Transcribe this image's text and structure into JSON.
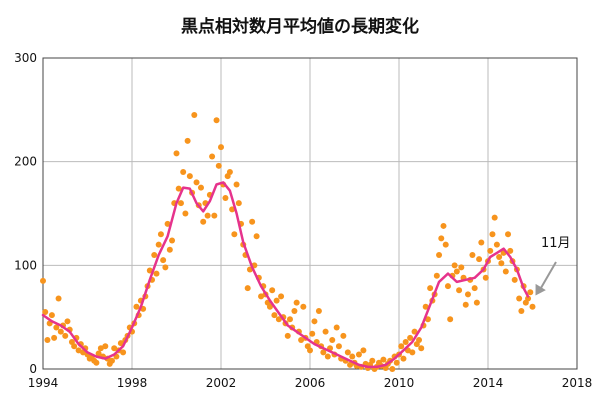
{
  "chart_data": {
    "type": "scatter",
    "title": "黒点相対数月平均値の長期変化",
    "xlabel": "",
    "ylabel": "",
    "xlim": [
      1994,
      2018
    ],
    "ylim": [
      0,
      300
    ],
    "x_ticks": [
      1994,
      1998,
      2002,
      2006,
      2010,
      2014,
      2018
    ],
    "y_ticks": [
      0,
      100,
      200,
      300
    ],
    "grid": true,
    "colors": {
      "monthly": "#f7941d",
      "smoothed": "#e6338c",
      "arrow": "#999999"
    },
    "annotation": {
      "text": "11月",
      "points_to": [
        2016.0,
        67
      ]
    },
    "series": [
      {
        "kind": "scatter",
        "points": [
          [
            1994.0,
            85
          ],
          [
            1994.1,
            55
          ],
          [
            1994.2,
            28
          ],
          [
            1994.3,
            44
          ],
          [
            1994.4,
            52
          ],
          [
            1994.5,
            30
          ],
          [
            1994.6,
            40
          ],
          [
            1994.7,
            68
          ],
          [
            1994.8,
            36
          ],
          [
            1994.9,
            42
          ],
          [
            1995.0,
            32
          ],
          [
            1995.1,
            46
          ],
          [
            1995.2,
            38
          ],
          [
            1995.3,
            26
          ],
          [
            1995.4,
            22
          ],
          [
            1995.5,
            30
          ],
          [
            1995.6,
            18
          ],
          [
            1995.7,
            24
          ],
          [
            1995.8,
            16
          ],
          [
            1995.9,
            20
          ],
          [
            1996.0,
            14
          ],
          [
            1996.1,
            10
          ],
          [
            1996.2,
            12
          ],
          [
            1996.3,
            8
          ],
          [
            1996.4,
            6
          ],
          [
            1996.5,
            15
          ],
          [
            1996.6,
            20
          ],
          [
            1996.7,
            12
          ],
          [
            1996.8,
            22
          ],
          [
            1996.9,
            10
          ],
          [
            1997.0,
            5
          ],
          [
            1997.1,
            8
          ],
          [
            1997.2,
            20
          ],
          [
            1997.3,
            12
          ],
          [
            1997.4,
            18
          ],
          [
            1997.5,
            25
          ],
          [
            1997.6,
            16
          ],
          [
            1997.7,
            28
          ],
          [
            1997.8,
            32
          ],
          [
            1997.9,
            40
          ],
          [
            1998.0,
            36
          ],
          [
            1998.1,
            44
          ],
          [
            1998.2,
            60
          ],
          [
            1998.3,
            52
          ],
          [
            1998.4,
            66
          ],
          [
            1998.5,
            58
          ],
          [
            1998.6,
            70
          ],
          [
            1998.7,
            80
          ],
          [
            1998.8,
            95
          ],
          [
            1998.9,
            86
          ],
          [
            1999.0,
            110
          ],
          [
            1999.1,
            92
          ],
          [
            1999.2,
            120
          ],
          [
            1999.3,
            130
          ],
          [
            1999.4,
            105
          ],
          [
            1999.5,
            98
          ],
          [
            1999.6,
            140
          ],
          [
            1999.7,
            115
          ],
          [
            1999.8,
            124
          ],
          [
            1999.9,
            160
          ],
          [
            2000.0,
            208
          ],
          [
            2000.1,
            174
          ],
          [
            2000.2,
            160
          ],
          [
            2000.3,
            190
          ],
          [
            2000.4,
            150
          ],
          [
            2000.5,
            220
          ],
          [
            2000.6,
            186
          ],
          [
            2000.7,
            170
          ],
          [
            2000.8,
            245
          ],
          [
            2000.9,
            180
          ],
          [
            2001.0,
            158
          ],
          [
            2001.1,
            175
          ],
          [
            2001.2,
            142
          ],
          [
            2001.3,
            160
          ],
          [
            2001.4,
            148
          ],
          [
            2001.5,
            168
          ],
          [
            2001.6,
            205
          ],
          [
            2001.7,
            148
          ],
          [
            2001.8,
            240
          ],
          [
            2001.9,
            196
          ],
          [
            2002.0,
            214
          ],
          [
            2002.1,
            178
          ],
          [
            2002.2,
            165
          ],
          [
            2002.3,
            186
          ],
          [
            2002.4,
            190
          ],
          [
            2002.5,
            154
          ],
          [
            2002.6,
            130
          ],
          [
            2002.7,
            178
          ],
          [
            2002.8,
            160
          ],
          [
            2002.9,
            140
          ],
          [
            2003.0,
            120
          ],
          [
            2003.1,
            110
          ],
          [
            2003.2,
            78
          ],
          [
            2003.3,
            96
          ],
          [
            2003.4,
            142
          ],
          [
            2003.5,
            100
          ],
          [
            2003.6,
            128
          ],
          [
            2003.7,
            88
          ],
          [
            2003.8,
            70
          ],
          [
            2003.9,
            80
          ],
          [
            2004.0,
            72
          ],
          [
            2004.1,
            64
          ],
          [
            2004.2,
            60
          ],
          [
            2004.3,
            76
          ],
          [
            2004.4,
            52
          ],
          [
            2004.5,
            66
          ],
          [
            2004.6,
            48
          ],
          [
            2004.7,
            70
          ],
          [
            2004.8,
            50
          ],
          [
            2004.9,
            44
          ],
          [
            2005.0,
            32
          ],
          [
            2005.1,
            48
          ],
          [
            2005.2,
            40
          ],
          [
            2005.3,
            56
          ],
          [
            2005.4,
            64
          ],
          [
            2005.5,
            36
          ],
          [
            2005.6,
            28
          ],
          [
            2005.7,
            60
          ],
          [
            2005.8,
            30
          ],
          [
            2005.9,
            22
          ],
          [
            2006.0,
            18
          ],
          [
            2006.1,
            34
          ],
          [
            2006.2,
            46
          ],
          [
            2006.3,
            26
          ],
          [
            2006.4,
            56
          ],
          [
            2006.5,
            22
          ],
          [
            2006.6,
            16
          ],
          [
            2006.7,
            36
          ],
          [
            2006.8,
            12
          ],
          [
            2006.9,
            20
          ],
          [
            2007.0,
            28
          ],
          [
            2007.1,
            14
          ],
          [
            2007.2,
            40
          ],
          [
            2007.3,
            22
          ],
          [
            2007.4,
            10
          ],
          [
            2007.5,
            32
          ],
          [
            2007.6,
            8
          ],
          [
            2007.7,
            16
          ],
          [
            2007.8,
            4
          ],
          [
            2007.9,
            12
          ],
          [
            2008.0,
            6
          ],
          [
            2008.1,
            3
          ],
          [
            2008.2,
            14
          ],
          [
            2008.3,
            2
          ],
          [
            2008.4,
            18
          ],
          [
            2008.5,
            5
          ],
          [
            2008.6,
            1
          ],
          [
            2008.7,
            4
          ],
          [
            2008.8,
            8
          ],
          [
            2008.9,
            0
          ],
          [
            2009.0,
            2
          ],
          [
            2009.1,
            6
          ],
          [
            2009.2,
            3
          ],
          [
            2009.3,
            9
          ],
          [
            2009.4,
            1
          ],
          [
            2009.5,
            5
          ],
          [
            2009.6,
            8
          ],
          [
            2009.7,
            0
          ],
          [
            2009.8,
            12
          ],
          [
            2009.9,
            6
          ],
          [
            2010.0,
            14
          ],
          [
            2010.1,
            22
          ],
          [
            2010.2,
            10
          ],
          [
            2010.3,
            26
          ],
          [
            2010.4,
            18
          ],
          [
            2010.5,
            30
          ],
          [
            2010.6,
            16
          ],
          [
            2010.7,
            36
          ],
          [
            2010.8,
            24
          ],
          [
            2010.9,
            28
          ],
          [
            2011.0,
            20
          ],
          [
            2011.1,
            42
          ],
          [
            2011.2,
            60
          ],
          [
            2011.3,
            48
          ],
          [
            2011.4,
            78
          ],
          [
            2011.5,
            66
          ],
          [
            2011.6,
            72
          ],
          [
            2011.7,
            90
          ],
          [
            2011.8,
            110
          ],
          [
            2011.9,
            126
          ],
          [
            2012.0,
            138
          ],
          [
            2012.1,
            120
          ],
          [
            2012.2,
            80
          ],
          [
            2012.3,
            48
          ],
          [
            2012.4,
            90
          ],
          [
            2012.5,
            100
          ],
          [
            2012.6,
            94
          ],
          [
            2012.7,
            76
          ],
          [
            2012.8,
            98
          ],
          [
            2012.9,
            88
          ],
          [
            2013.0,
            62
          ],
          [
            2013.1,
            72
          ],
          [
            2013.2,
            86
          ],
          [
            2013.3,
            110
          ],
          [
            2013.4,
            78
          ],
          [
            2013.5,
            64
          ],
          [
            2013.6,
            106
          ],
          [
            2013.7,
            122
          ],
          [
            2013.8,
            96
          ],
          [
            2013.9,
            88
          ],
          [
            2014.0,
            104
          ],
          [
            2014.1,
            114
          ],
          [
            2014.2,
            130
          ],
          [
            2014.3,
            146
          ],
          [
            2014.4,
            120
          ],
          [
            2014.5,
            108
          ],
          [
            2014.6,
            102
          ],
          [
            2014.7,
            112
          ],
          [
            2014.8,
            94
          ],
          [
            2014.9,
            130
          ],
          [
            2015.0,
            114
          ],
          [
            2015.1,
            104
          ],
          [
            2015.2,
            86
          ],
          [
            2015.3,
            96
          ],
          [
            2015.4,
            68
          ],
          [
            2015.5,
            56
          ],
          [
            2015.6,
            80
          ],
          [
            2015.7,
            64
          ],
          [
            2015.8,
            68
          ],
          [
            2015.9,
            74
          ],
          [
            2016.0,
            60
          ]
        ]
      },
      {
        "kind": "line",
        "points": [
          [
            1994.0,
            52
          ],
          [
            1994.4,
            46
          ],
          [
            1994.8,
            42
          ],
          [
            1995.2,
            36
          ],
          [
            1995.6,
            24
          ],
          [
            1996.0,
            16
          ],
          [
            1996.4,
            12
          ],
          [
            1996.8,
            10
          ],
          [
            1997.2,
            14
          ],
          [
            1997.6,
            22
          ],
          [
            1998.0,
            40
          ],
          [
            1998.4,
            60
          ],
          [
            1998.8,
            86
          ],
          [
            1999.2,
            110
          ],
          [
            1999.6,
            128
          ],
          [
            2000.0,
            160
          ],
          [
            2000.3,
            175
          ],
          [
            2000.6,
            174
          ],
          [
            2000.9,
            160
          ],
          [
            2001.2,
            152
          ],
          [
            2001.5,
            162
          ],
          [
            2001.8,
            178
          ],
          [
            2002.1,
            180
          ],
          [
            2002.4,
            172
          ],
          [
            2002.7,
            150
          ],
          [
            2003.0,
            122
          ],
          [
            2003.4,
            98
          ],
          [
            2003.8,
            80
          ],
          [
            2004.2,
            66
          ],
          [
            2004.6,
            54
          ],
          [
            2005.0,
            42
          ],
          [
            2005.4,
            36
          ],
          [
            2005.8,
            30
          ],
          [
            2006.2,
            24
          ],
          [
            2006.6,
            20
          ],
          [
            2007.0,
            16
          ],
          [
            2007.4,
            12
          ],
          [
            2007.8,
            8
          ],
          [
            2008.2,
            4
          ],
          [
            2008.6,
            2
          ],
          [
            2009.0,
            2
          ],
          [
            2009.4,
            4
          ],
          [
            2009.8,
            10
          ],
          [
            2010.2,
            18
          ],
          [
            2010.6,
            26
          ],
          [
            2011.0,
            40
          ],
          [
            2011.4,
            62
          ],
          [
            2011.8,
            84
          ],
          [
            2012.2,
            92
          ],
          [
            2012.6,
            84
          ],
          [
            2013.0,
            86
          ],
          [
            2013.4,
            88
          ],
          [
            2013.8,
            96
          ],
          [
            2014.1,
            108
          ],
          [
            2014.4,
            112
          ],
          [
            2014.7,
            116
          ],
          [
            2015.0,
            108
          ],
          [
            2015.3,
            96
          ],
          [
            2015.6,
            78
          ],
          [
            2015.8,
            70
          ]
        ]
      }
    ]
  }
}
